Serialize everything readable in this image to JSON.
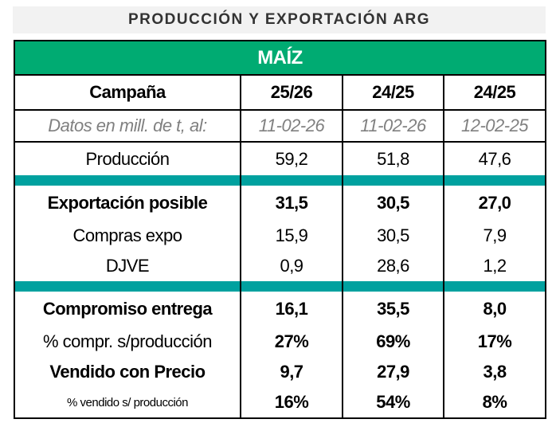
{
  "title": "PRODUCCIÓN Y EXPORTACIÓN ARG",
  "crop": "MAÍZ",
  "header": {
    "label": "Campaña",
    "cols": [
      "25/26",
      "24/25",
      "24/25"
    ]
  },
  "dates": {
    "label": "Datos en mill. de t, al:",
    "cols": [
      "11-02-26",
      "11-02-26",
      "12-02-25"
    ]
  },
  "rows": [
    {
      "label": "Producción",
      "values": [
        "59,2",
        "51,8",
        "47,6"
      ]
    },
    {
      "label": "Exportación posible",
      "values": [
        "31,5",
        "30,5",
        "27,0"
      ]
    },
    {
      "label": "Compras expo",
      "values": [
        "15,9",
        "30,5",
        "7,9"
      ]
    },
    {
      "label": "DJVE",
      "values": [
        "0,9",
        "28,6",
        "1,2"
      ]
    },
    {
      "label": "Compromiso entrega",
      "values": [
        "16,1",
        "35,5",
        "8,0"
      ]
    },
    {
      "label": "% compr. s/producción",
      "values": [
        "27%",
        "69%",
        "17%"
      ]
    },
    {
      "label": "Vendido con Precio",
      "values": [
        "9,7",
        "27,9",
        "3,8"
      ]
    },
    {
      "label": "% vendido s/ producción",
      "values": [
        "16%",
        "54%",
        "8%"
      ]
    }
  ],
  "colors": {
    "green": "#00ab72",
    "teal": "#00a19f"
  }
}
